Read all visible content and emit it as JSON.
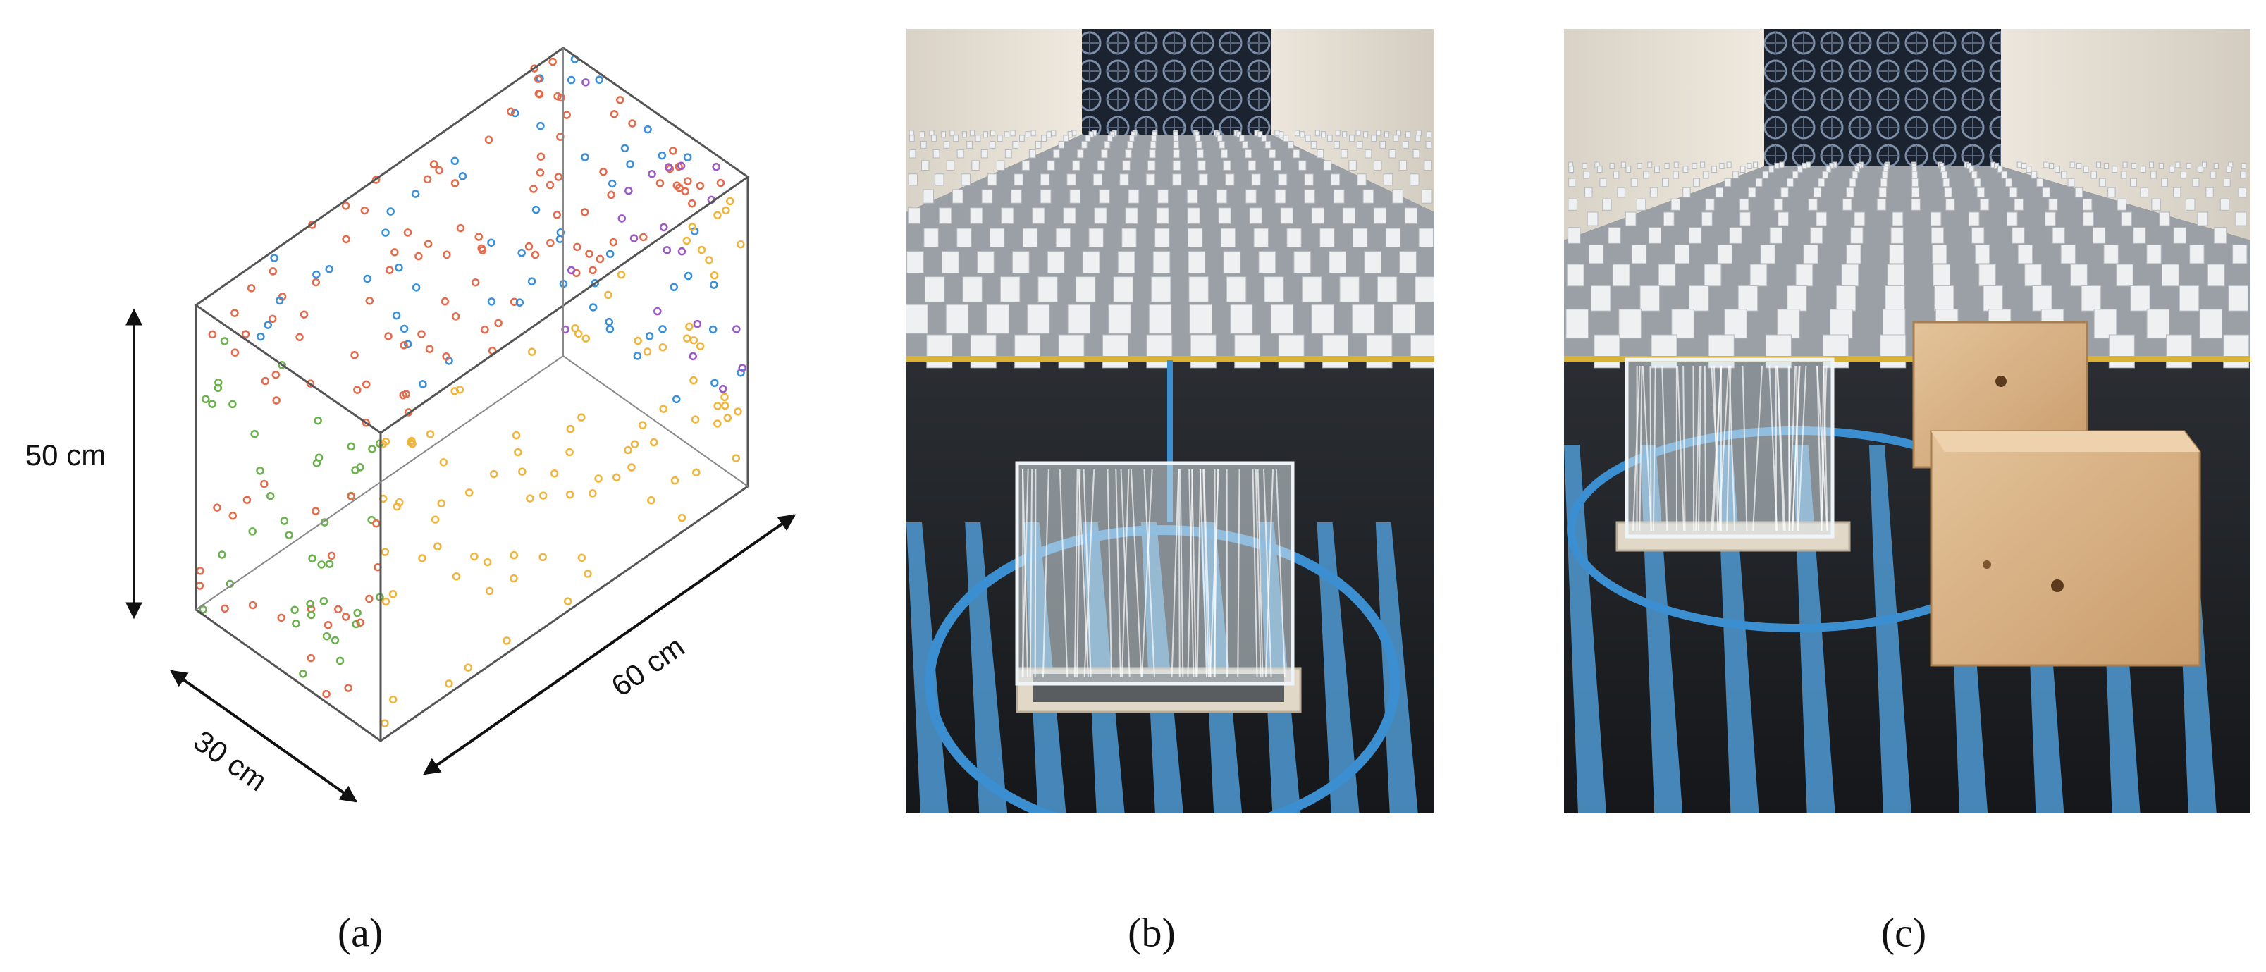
{
  "panels": [
    {
      "label": "(a)",
      "dimensions": {
        "height": "50 cm",
        "width": "30 cm",
        "length": "60 cm"
      }
    },
    {
      "label": "(b)"
    },
    {
      "label": "(c)"
    }
  ]
}
